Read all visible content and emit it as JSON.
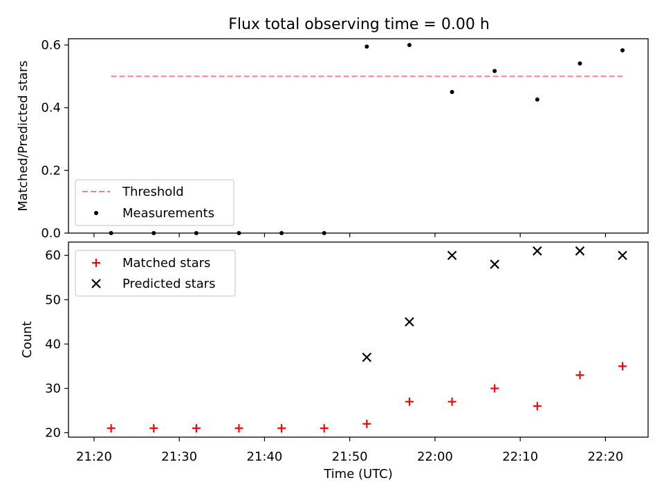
{
  "chart_data": [
    {
      "type": "scatter",
      "title": "Flux total observing time = 0.00 h",
      "xlabel": "",
      "ylabel": "Matched/Predicted stars",
      "ylim": [
        0.0,
        0.62
      ],
      "yticks": [
        0.0,
        0.2,
        0.4,
        0.6
      ],
      "ytick_labels": [
        "0.0",
        "0.2",
        "0.4",
        "0.6"
      ],
      "legend_position": "lower-left",
      "series": [
        {
          "name": "Threshold",
          "kind": "dashed-line",
          "color": "#ff7f7f",
          "x": [
            "21:22",
            "22:22"
          ],
          "y": [
            0.5,
            0.5
          ]
        },
        {
          "name": "Measurements",
          "kind": "points",
          "marker": "dot",
          "color": "#000000",
          "x": [
            "21:22",
            "21:27",
            "21:32",
            "21:37",
            "21:42",
            "21:47",
            "21:52",
            "21:57",
            "22:02",
            "22:07",
            "22:12",
            "22:17",
            "22:22"
          ],
          "y": [
            0.0,
            0.0,
            0.0,
            0.0,
            0.0,
            0.0,
            0.595,
            0.6,
            0.45,
            0.517,
            0.426,
            0.541,
            0.583
          ]
        }
      ]
    },
    {
      "type": "scatter",
      "xlabel": "Time (UTC)",
      "ylabel": "Count",
      "ylim": [
        19,
        63
      ],
      "yticks": [
        20,
        30,
        40,
        50,
        60
      ],
      "ytick_labels": [
        "20",
        "30",
        "40",
        "50",
        "60"
      ],
      "xlim": [
        "21:17",
        "22:25"
      ],
      "xticks": [
        "21:20",
        "21:30",
        "21:40",
        "21:50",
        "22:00",
        "22:10",
        "22:20"
      ],
      "legend_position": "upper-left",
      "series": [
        {
          "name": "Matched stars",
          "marker": "plus",
          "color": "#ff0000",
          "x": [
            "21:22",
            "21:27",
            "21:32",
            "21:37",
            "21:42",
            "21:47",
            "21:52",
            "21:57",
            "22:02",
            "22:07",
            "22:12",
            "22:17",
            "22:22"
          ],
          "y": [
            21,
            21,
            21,
            21,
            21,
            21,
            22,
            27,
            27,
            30,
            26,
            33,
            35
          ]
        },
        {
          "name": "Predicted stars",
          "marker": "x",
          "color": "#000000",
          "x": [
            "21:52",
            "21:57",
            "22:02",
            "22:07",
            "22:12",
            "22:17",
            "22:22"
          ],
          "y": [
            37,
            45,
            60,
            58,
            61,
            61,
            60
          ]
        }
      ]
    }
  ]
}
